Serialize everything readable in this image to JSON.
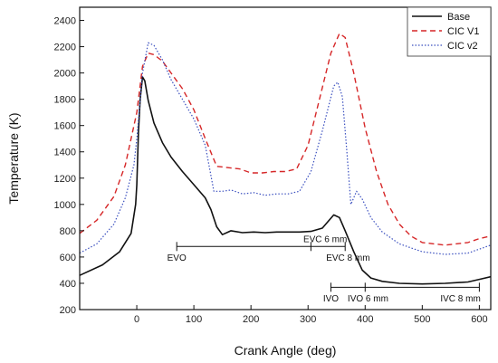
{
  "chart_data": {
    "type": "line",
    "xlabel": "Crank Angle (deg)",
    "ylabel": "Temperature (K)",
    "xlim": [
      -100,
      620
    ],
    "ylim": [
      200,
      2500
    ],
    "xticks": [
      0,
      100,
      200,
      300,
      400,
      500,
      600
    ],
    "yticks": [
      200,
      400,
      600,
      800,
      1000,
      1200,
      1400,
      1600,
      1800,
      2000,
      2200,
      2400
    ],
    "grid": false,
    "legend_position": "top-right",
    "series": [
      {
        "name": "Base",
        "color": "#111111",
        "dash": "solid",
        "points": [
          [
            -100,
            460
          ],
          [
            -60,
            540
          ],
          [
            -30,
            640
          ],
          [
            -10,
            780
          ],
          [
            -2,
            1000
          ],
          [
            0,
            1150
          ],
          [
            3,
            1550
          ],
          [
            6,
            1800
          ],
          [
            10,
            1970
          ],
          [
            14,
            1940
          ],
          [
            20,
            1790
          ],
          [
            30,
            1620
          ],
          [
            45,
            1470
          ],
          [
            60,
            1360
          ],
          [
            80,
            1250
          ],
          [
            100,
            1150
          ],
          [
            120,
            1050
          ],
          [
            130,
            960
          ],
          [
            140,
            830
          ],
          [
            150,
            770
          ],
          [
            165,
            800
          ],
          [
            185,
            785
          ],
          [
            205,
            790
          ],
          [
            225,
            785
          ],
          [
            245,
            790
          ],
          [
            265,
            790
          ],
          [
            285,
            790
          ],
          [
            305,
            795
          ],
          [
            325,
            820
          ],
          [
            345,
            920
          ],
          [
            355,
            900
          ],
          [
            365,
            800
          ],
          [
            380,
            640
          ],
          [
            395,
            500
          ],
          [
            410,
            440
          ],
          [
            430,
            415
          ],
          [
            460,
            400
          ],
          [
            500,
            395
          ],
          [
            540,
            400
          ],
          [
            580,
            410
          ],
          [
            600,
            430
          ],
          [
            620,
            450
          ]
        ]
      },
      {
        "name": "CIC V1",
        "color": "#d62728",
        "dash": "dashed",
        "points": [
          [
            -100,
            780
          ],
          [
            -70,
            880
          ],
          [
            -40,
            1060
          ],
          [
            -20,
            1300
          ],
          [
            0,
            1700
          ],
          [
            10,
            2050
          ],
          [
            20,
            2150
          ],
          [
            30,
            2140
          ],
          [
            45,
            2090
          ],
          [
            60,
            2000
          ],
          [
            80,
            1880
          ],
          [
            100,
            1720
          ],
          [
            120,
            1500
          ],
          [
            140,
            1290
          ],
          [
            160,
            1280
          ],
          [
            180,
            1270
          ],
          [
            200,
            1240
          ],
          [
            220,
            1240
          ],
          [
            240,
            1250
          ],
          [
            260,
            1250
          ],
          [
            280,
            1270
          ],
          [
            300,
            1450
          ],
          [
            320,
            1800
          ],
          [
            340,
            2150
          ],
          [
            355,
            2300
          ],
          [
            365,
            2270
          ],
          [
            380,
            2000
          ],
          [
            400,
            1580
          ],
          [
            420,
            1250
          ],
          [
            440,
            1000
          ],
          [
            460,
            850
          ],
          [
            480,
            760
          ],
          [
            500,
            710
          ],
          [
            540,
            690
          ],
          [
            580,
            710
          ],
          [
            600,
            740
          ],
          [
            620,
            760
          ]
        ]
      },
      {
        "name": "CIC v2",
        "color": "#3a4fbf",
        "dash": "dotted",
        "points": [
          [
            -100,
            630
          ],
          [
            -70,
            700
          ],
          [
            -40,
            850
          ],
          [
            -20,
            1050
          ],
          [
            -5,
            1300
          ],
          [
            0,
            1500
          ],
          [
            10,
            2000
          ],
          [
            20,
            2230
          ],
          [
            30,
            2210
          ],
          [
            45,
            2100
          ],
          [
            60,
            1950
          ],
          [
            80,
            1800
          ],
          [
            100,
            1650
          ],
          [
            120,
            1450
          ],
          [
            135,
            1100
          ],
          [
            150,
            1100
          ],
          [
            165,
            1110
          ],
          [
            185,
            1080
          ],
          [
            205,
            1090
          ],
          [
            225,
            1070
          ],
          [
            245,
            1080
          ],
          [
            265,
            1080
          ],
          [
            285,
            1100
          ],
          [
            305,
            1250
          ],
          [
            325,
            1560
          ],
          [
            345,
            1900
          ],
          [
            352,
            1930
          ],
          [
            360,
            1820
          ],
          [
            368,
            1400
          ],
          [
            375,
            1000
          ],
          [
            385,
            1100
          ],
          [
            395,
            1040
          ],
          [
            410,
            900
          ],
          [
            430,
            790
          ],
          [
            460,
            700
          ],
          [
            500,
            640
          ],
          [
            540,
            620
          ],
          [
            580,
            630
          ],
          [
            600,
            660
          ],
          [
            620,
            690
          ]
        ]
      }
    ],
    "annotations": [
      {
        "type": "bracket",
        "x_start": 70,
        "x_end": 365,
        "y": 680,
        "label": "EVO",
        "label_x": 70,
        "label_y": 600
      },
      {
        "type": "tick",
        "x": 305,
        "y": 680,
        "label": "EVC 6 mm",
        "label_x": 330,
        "label_y": 740
      },
      {
        "type": "label",
        "label": "EVC 8 mm",
        "label_x": 370,
        "label_y": 600
      },
      {
        "type": "bracket",
        "x_start": 340,
        "x_end": 600,
        "y": 370,
        "label": "IVO",
        "label_x": 340,
        "label_y": 290
      },
      {
        "type": "tick",
        "x": 400,
        "y": 370,
        "label": "IVO 6 mm",
        "label_x": 405,
        "label_y": 290
      },
      {
        "type": "label",
        "label": "IVC 8 mm",
        "label_x": 567,
        "label_y": 290
      }
    ]
  }
}
